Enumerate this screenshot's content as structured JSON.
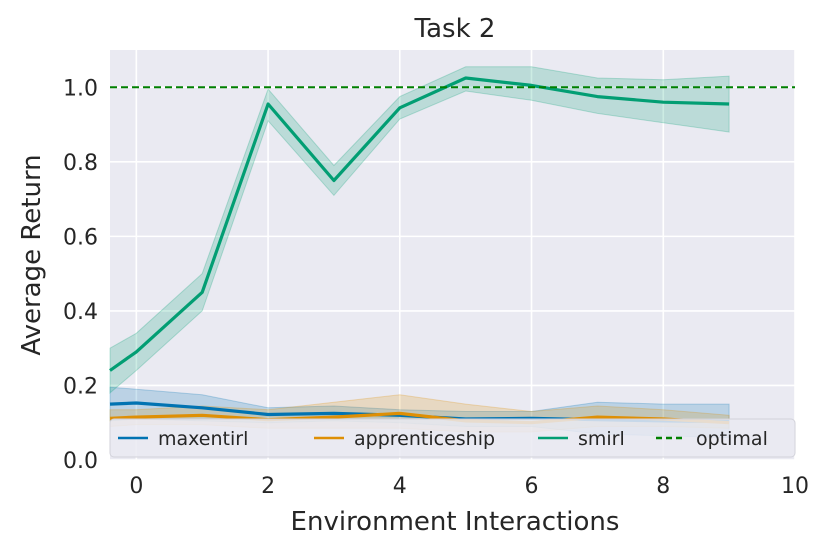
{
  "chart_data": {
    "type": "line",
    "title": "Task 2",
    "xlabel": "Environment Interactions",
    "ylabel": "Average Return",
    "xlim": [
      -0.4,
      10
    ],
    "ylim": [
      0,
      1.1
    ],
    "x_ticks": [
      0,
      2,
      4,
      6,
      8,
      10
    ],
    "y_ticks": [
      0.0,
      0.2,
      0.4,
      0.6,
      0.8,
      1.0
    ],
    "x_tick_labels": [
      "0",
      "2",
      "4",
      "6",
      "8",
      "10"
    ],
    "y_tick_labels": [
      "0.0",
      "0.2",
      "0.4",
      "0.6",
      "0.8",
      "1.0"
    ],
    "grid": true,
    "legend_position": "bottom",
    "series": [
      {
        "name": "maxentirl",
        "color": "#0173b2",
        "x": [
          -0.4,
          0,
          1,
          2,
          3,
          4,
          5,
          6,
          7,
          8,
          9
        ],
        "y": [
          0.15,
          0.153,
          0.14,
          0.122,
          0.125,
          0.12,
          0.11,
          0.112,
          0.108,
          0.105,
          0.103
        ],
        "upper": [
          0.195,
          0.19,
          0.175,
          0.14,
          0.145,
          0.135,
          0.13,
          0.13,
          0.155,
          0.15,
          0.15
        ],
        "lower": [
          0.105,
          0.11,
          0.105,
          0.1,
          0.105,
          0.1,
          0.09,
          0.09,
          0.07,
          0.065,
          0.06
        ]
      },
      {
        "name": "apprenticeship",
        "color": "#de8f05",
        "x": [
          -0.4,
          0,
          1,
          2,
          3,
          4,
          5,
          6,
          7,
          8,
          9
        ],
        "y": [
          0.112,
          0.115,
          0.12,
          0.108,
          0.115,
          0.125,
          0.105,
          0.1,
          0.115,
          0.11,
          0.1
        ],
        "upper": [
          0.135,
          0.135,
          0.145,
          0.135,
          0.155,
          0.175,
          0.15,
          0.13,
          0.145,
          0.135,
          0.12
        ],
        "lower": [
          0.09,
          0.095,
          0.095,
          0.085,
          0.085,
          0.085,
          0.075,
          0.075,
          0.09,
          0.09,
          0.085
        ]
      },
      {
        "name": "smirl",
        "color": "#029e73",
        "x": [
          -0.4,
          0,
          1,
          2,
          3,
          4,
          5,
          6,
          7,
          8,
          9
        ],
        "y": [
          0.24,
          0.29,
          0.45,
          0.955,
          0.75,
          0.945,
          1.025,
          1.005,
          0.975,
          0.96,
          0.955
        ],
        "upper": [
          0.3,
          0.34,
          0.5,
          0.995,
          0.79,
          0.975,
          1.055,
          1.055,
          1.025,
          1.02,
          1.03
        ],
        "lower": [
          0.18,
          0.24,
          0.4,
          0.91,
          0.71,
          0.915,
          0.99,
          0.965,
          0.93,
          0.905,
          0.88
        ]
      },
      {
        "name": "optimal",
        "color": "#008000",
        "style": "dashed",
        "x": [
          -0.4,
          10
        ],
        "y": [
          1.0,
          1.0
        ]
      }
    ]
  }
}
